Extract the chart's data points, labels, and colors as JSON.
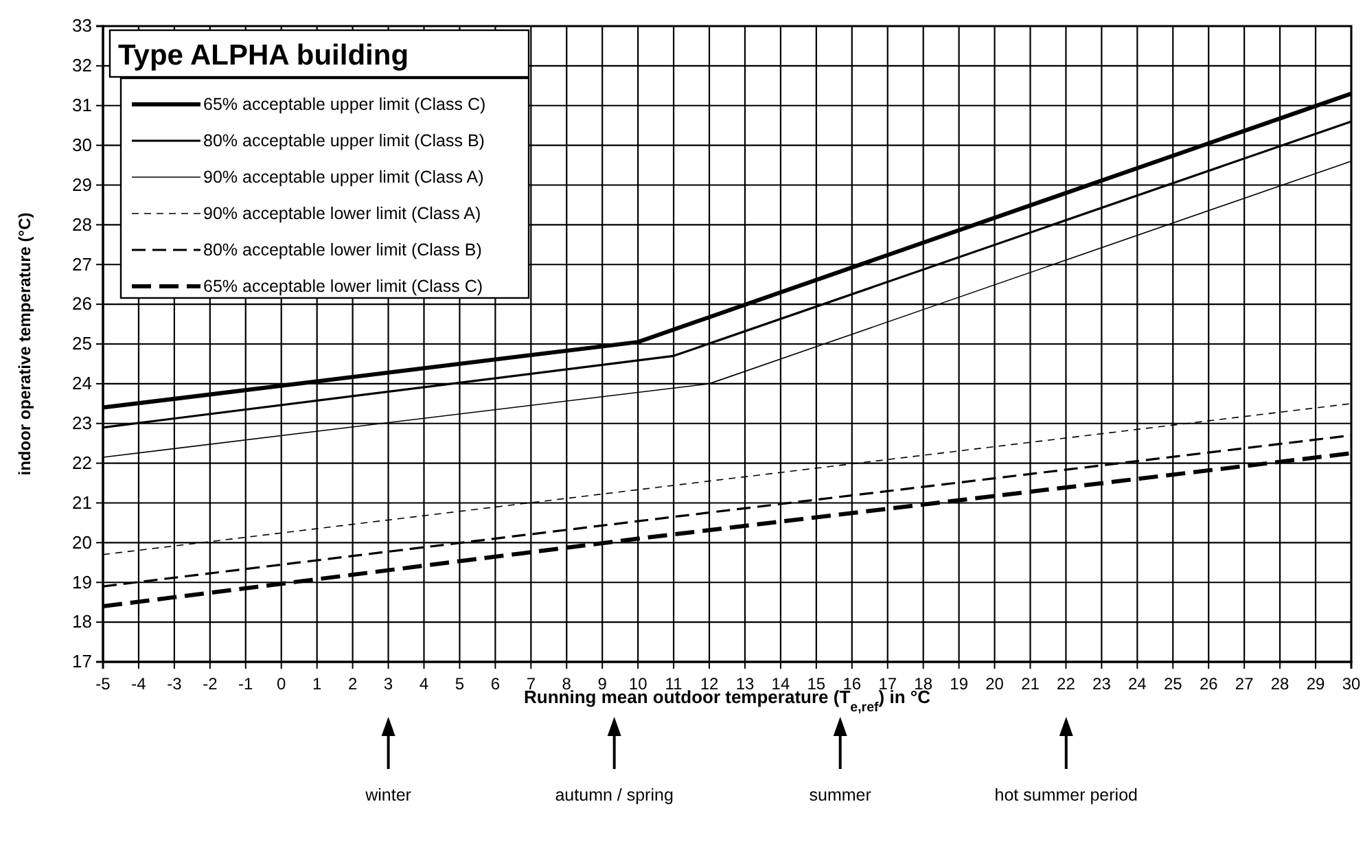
{
  "chart_data": {
    "type": "line",
    "legend_title": "Type ALPHA building",
    "xlabel": "Running mean outdoor temperature (T$_{e,ref}$) in °C",
    "ylabel": "indoor operative temperature (°C)",
    "xlim": [
      -5,
      30
    ],
    "xticks": [
      -5,
      -4,
      -3,
      -2,
      -1,
      0,
      1,
      2,
      3,
      4,
      5,
      6,
      7,
      8,
      9,
      10,
      11,
      12,
      13,
      14,
      15,
      16,
      17,
      18,
      19,
      20,
      21,
      22,
      23,
      24,
      25,
      26,
      27,
      28,
      29,
      30
    ],
    "ylim": [
      17,
      33
    ],
    "yticks": [
      17,
      18,
      19,
      20,
      21,
      22,
      23,
      24,
      25,
      26,
      27,
      28,
      29,
      30,
      31,
      32,
      33
    ],
    "grid": true,
    "legend": "top left",
    "marker": "none",
    "series": [
      {
        "name": "65% acceptable upper limit (Class C)",
        "color": "#000000",
        "line_style": "solid",
        "x": [
          -5,
          10,
          30
        ],
        "values": [
          23.4,
          25.05,
          31.3
        ]
      },
      {
        "name": "80% acceptable upper limit (Class B)",
        "color": "#000000",
        "line_style": "solid",
        "x": [
          -5,
          11,
          30
        ],
        "values": [
          22.9,
          24.7,
          30.6
        ]
      },
      {
        "name": "90% acceptable upper limit (Class A)",
        "color": "#000000",
        "line_style": "solid",
        "x": [
          -5,
          12,
          30
        ],
        "values": [
          22.15,
          24.0,
          29.6
        ]
      },
      {
        "name": "90% acceptable lower limit (Class A)",
        "color": "#000000",
        "line_style": "dashed",
        "x": [
          -5,
          12,
          30
        ],
        "values": [
          19.7,
          21.55,
          23.5
        ]
      },
      {
        "name": "80% acceptable lower limit (Class B)",
        "color": "#000000",
        "line_style": "dashed",
        "x": [
          -5,
          11,
          30
        ],
        "values": [
          18.9,
          20.65,
          22.7
        ]
      },
      {
        "name": "65% acceptable lower limit (Class C)",
        "color": "#000000",
        "line_style": "dashed",
        "x": [
          -5,
          10,
          30
        ],
        "values": [
          18.4,
          20.1,
          22.25
        ]
      }
    ],
    "annotations": [
      "winter",
      "autumn / spring",
      "summer",
      "hot summer period"
    ]
  }
}
